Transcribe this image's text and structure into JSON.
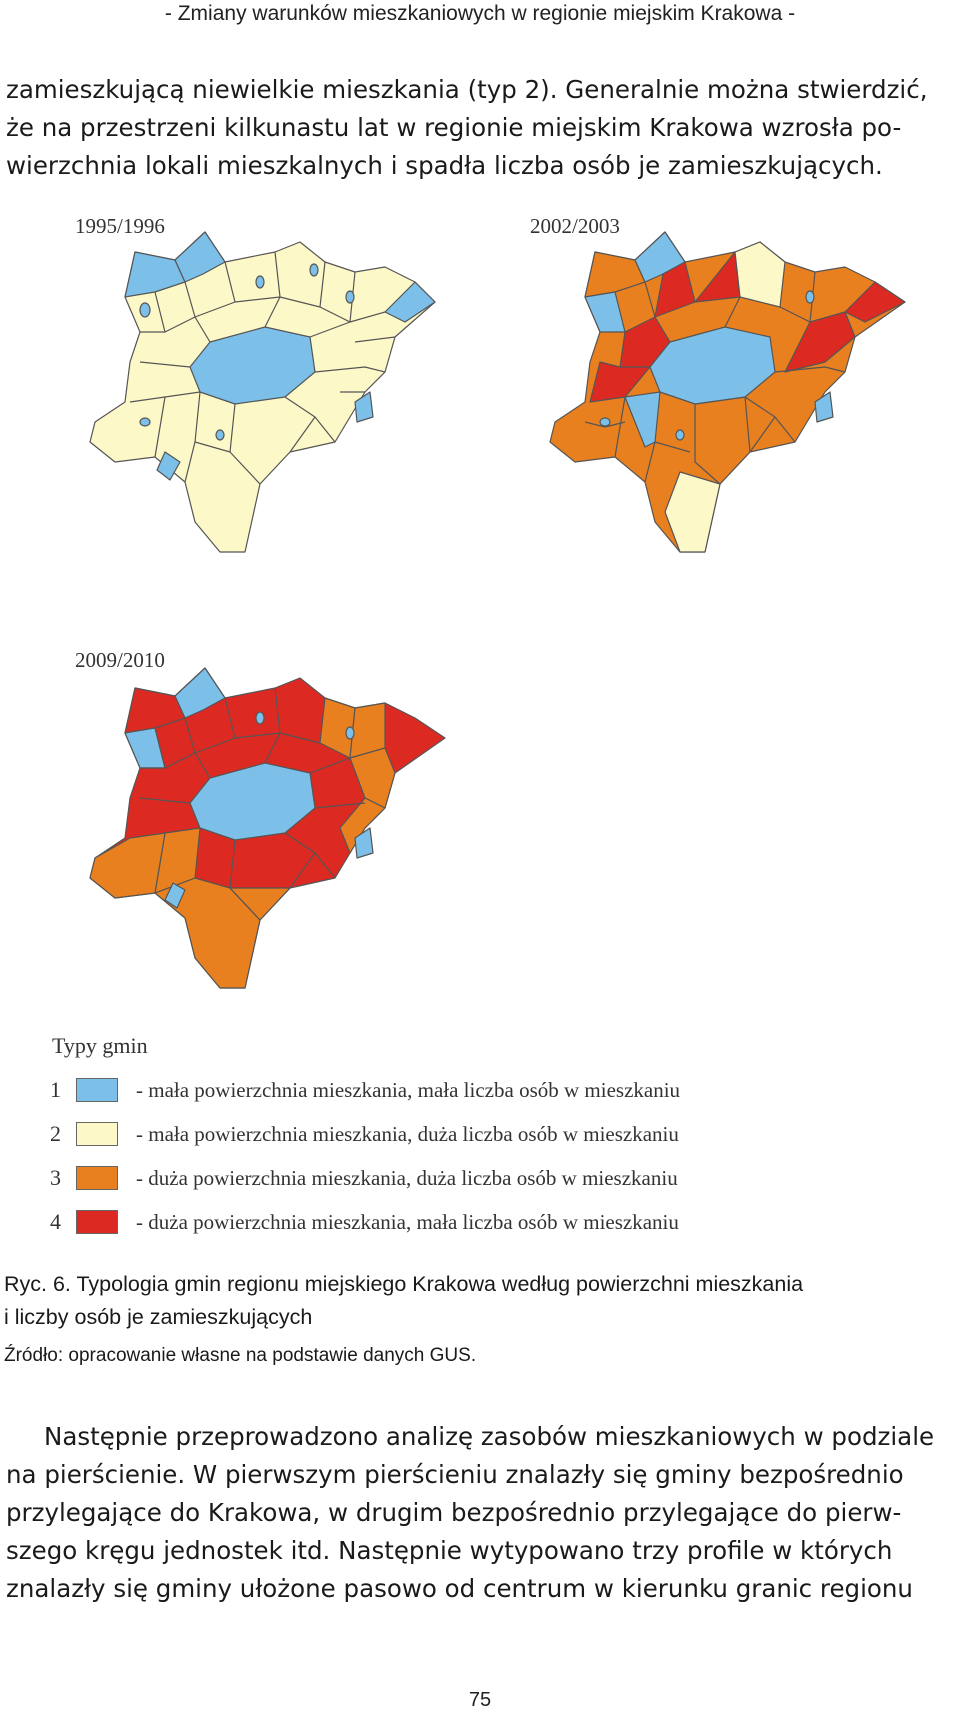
{
  "header": {
    "running_title": "- Zmiany warunków mieszkaniowych w regionie miejskim Krakowa -"
  },
  "paragraph_top": {
    "lines": [
      "zamieszkującą niewielkie mieszkania (typ 2). Generalnie można stwierdzić,",
      "że na przestrzeni kilkunastu lat w regionie miejskim Krakowa wzrosła po-",
      "wierzchnia lokali mieszkalnych i spadła liczba osób je zamieszkujących."
    ]
  },
  "figure": {
    "maps": [
      {
        "label": "1995/1996"
      },
      {
        "label": "2002/2003"
      },
      {
        "label": "2009/2010"
      }
    ],
    "legend": {
      "title": "Typy gmin",
      "items": [
        {
          "num": "1",
          "color": "#7cc0ea",
          "text": "- mała powierzchnia mieszkania, mała liczba osób w mieszkaniu"
        },
        {
          "num": "2",
          "color": "#fdf8c8",
          "text": "- mała powierzchnia mieszkania, duża liczba osób w mieszkaniu"
        },
        {
          "num": "3",
          "color": "#e8801f",
          "text": "- duża powierzchnia mieszkania, duża liczba osób w mieszkaniu"
        },
        {
          "num": "4",
          "color": "#dc2a22",
          "text": "- duża powierzchnia mieszkania, mała liczba osób w mieszkaniu"
        }
      ]
    },
    "caption": {
      "line1": "Ryc. 6. Typologia gmin regionu miejskiego Krakowa według powierzchni mieszkania",
      "line2": "i liczby osób je zamieszkujących",
      "source": "Źródło: opracowanie własne na podstawie danych GUS."
    }
  },
  "paragraph_bottom": {
    "lines": [
      "Następnie przeprowadzono analizę zasobów mieszkaniowych w podziale",
      "na pierścienie. W pierwszym pierścieniu znalazły się gminy bezpośrednio",
      "przylegające do Krakowa, w drugim bezpośrednio przylegające do pierw-",
      "szego kręgu jednostek itd. Następnie wytypowano trzy profile w których",
      "znalazły się gminy ułożone pasowo od centrum w kierunku granic regionu"
    ]
  },
  "footer": {
    "page_number": "75"
  }
}
